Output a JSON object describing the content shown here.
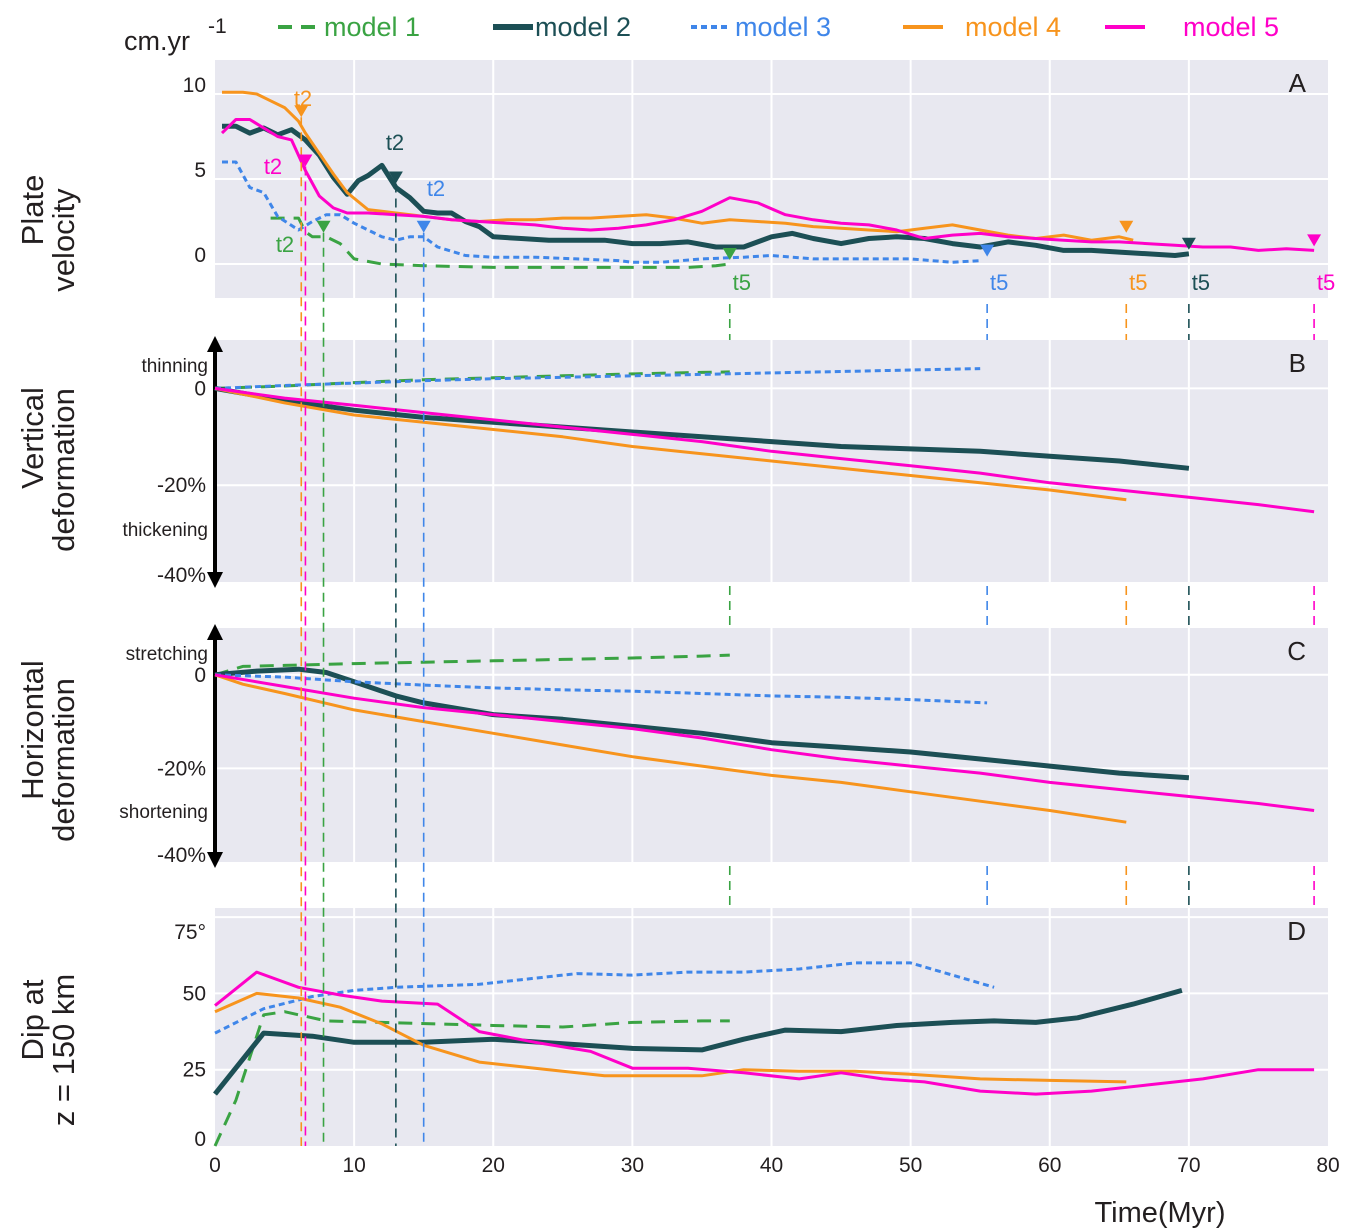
{
  "legend": {
    "unit": "cm.yr",
    "unit_sup": "-1",
    "items": [
      {
        "label": "model 1",
        "color": "#3aa343",
        "dash": "14,9",
        "width": 3
      },
      {
        "label": "model 2",
        "color": "#1c4f55",
        "dash": "",
        "width": 5
      },
      {
        "label": "model 3",
        "color": "#3f86e9",
        "dash": "6,4",
        "width": 3
      },
      {
        "label": "model 4",
        "color": "#f7941d",
        "dash": "",
        "width": 3
      },
      {
        "label": "model 5",
        "color": "#ff00c8",
        "dash": "",
        "width": 3
      }
    ]
  },
  "xaxis": {
    "label": "Time(Myr)",
    "ticks": [
      "0",
      "10",
      "20",
      "30",
      "40",
      "50",
      "60",
      "70",
      "80"
    ]
  },
  "panels": [
    {
      "letter": "A",
      "ylabel": [
        "Plate",
        "velocity"
      ],
      "ticks": [
        "10",
        "5",
        "0"
      ],
      "top_label": "",
      "bottom_label": ""
    },
    {
      "letter": "B",
      "ylabel": [
        "Vertical",
        "deformation"
      ],
      "ticks": [
        "0",
        "-20%",
        "-40%"
      ],
      "top_label": "thinning",
      "bottom_label": "thickening"
    },
    {
      "letter": "C",
      "ylabel": [
        "Horizontal",
        "deformation"
      ],
      "ticks": [
        "0",
        "-20%",
        "-40%"
      ],
      "top_label": "stretching",
      "bottom_label": "shortening"
    },
    {
      "letter": "D",
      "ylabel": [
        "Dip at",
        "z = 150 km"
      ],
      "ticks": [
        "75°",
        "50",
        "25",
        "0"
      ],
      "top_label": "",
      "bottom_label": ""
    }
  ],
  "markers": {
    "t2": [
      {
        "model": 1,
        "time": 7.8,
        "label": "t2"
      },
      {
        "model": 2,
        "time": 13.0,
        "label": "t2"
      },
      {
        "model": 3,
        "time": 15.0,
        "label": "t2"
      },
      {
        "model": 4,
        "time": 6.2,
        "label": "t2"
      },
      {
        "model": 5,
        "time": 6.5,
        "label": "t2"
      }
    ],
    "t5": [
      {
        "model": 1,
        "time": 37.0,
        "label": "t5"
      },
      {
        "model": 2,
        "time": 70.0,
        "label": "t5"
      },
      {
        "model": 3,
        "time": 55.5,
        "label": "t5"
      },
      {
        "model": 4,
        "time": 65.5,
        "label": "t5"
      },
      {
        "model": 5,
        "time": 79.0,
        "label": "t5"
      }
    ]
  },
  "chart_data": [
    {
      "type": "line",
      "panel": "A",
      "ylabel": "Plate velocity",
      "unit": "cm.yr-1",
      "xlim": [
        0,
        80
      ],
      "ylim": [
        -2,
        12
      ],
      "series": [
        {
          "name": "model 1",
          "x": [
            4,
            5,
            6,
            6.5,
            7,
            7.5,
            8,
            9,
            10,
            12,
            15,
            20,
            25,
            30,
            34,
            36,
            37
          ],
          "y": [
            2.7,
            2.7,
            2.7,
            1.9,
            1.6,
            1.6,
            1.6,
            1.2,
            0.3,
            0.0,
            -0.1,
            -0.2,
            -0.2,
            -0.2,
            -0.2,
            -0.1,
            0.0
          ]
        },
        {
          "name": "model 2",
          "x": [
            0.5,
            1.5,
            2.5,
            3.5,
            4.5,
            5.5,
            6.5,
            7.5,
            8.5,
            9.5,
            10.3,
            11,
            12,
            13,
            14,
            15,
            16,
            17,
            18,
            19,
            20,
            22,
            24,
            26,
            28,
            30,
            32,
            34,
            36,
            38,
            40,
            41.5,
            43,
            45,
            47,
            49,
            51,
            53,
            55,
            57,
            59,
            61,
            63,
            65,
            67,
            69,
            70
          ],
          "y": [
            8.1,
            8.1,
            7.7,
            8.0,
            7.6,
            7.9,
            7.3,
            6.4,
            5.1,
            4.1,
            4.9,
            5.2,
            5.8,
            4.5,
            3.9,
            3.1,
            3.0,
            3.0,
            2.5,
            2.2,
            1.6,
            1.5,
            1.4,
            1.4,
            1.4,
            1.2,
            1.2,
            1.3,
            1.0,
            1.0,
            1.6,
            1.8,
            1.5,
            1.2,
            1.5,
            1.6,
            1.5,
            1.2,
            1.0,
            1.3,
            1.1,
            0.8,
            0.8,
            0.7,
            0.6,
            0.5,
            0.6
          ]
        },
        {
          "name": "model 3",
          "x": [
            0.5,
            1.5,
            2.5,
            3.5,
            4.5,
            6,
            7,
            8,
            9,
            10,
            12,
            13,
            14,
            15,
            16,
            18,
            20,
            23,
            26,
            29,
            30,
            32,
            35,
            38,
            40,
            43,
            45,
            48,
            50,
            53,
            55
          ],
          "y": [
            6.0,
            6.0,
            4.5,
            4.2,
            2.8,
            2.0,
            2.5,
            2.9,
            2.9,
            2.4,
            1.6,
            1.4,
            1.6,
            1.6,
            1.0,
            0.5,
            0.4,
            0.4,
            0.3,
            0.2,
            0.1,
            0.1,
            0.3,
            0.4,
            0.5,
            0.3,
            0.3,
            0.3,
            0.3,
            0.1,
            0.2
          ]
        },
        {
          "name": "model 4",
          "x": [
            0.5,
            2,
            3,
            4,
            5,
            6,
            6.5,
            7.5,
            8.5,
            9.5,
            11,
            13,
            15,
            17,
            19,
            21,
            23,
            25,
            27,
            29,
            31,
            33,
            35,
            37,
            39,
            41,
            43,
            45,
            47,
            49,
            51,
            53,
            55,
            57,
            59,
            61,
            63,
            65,
            66
          ],
          "y": [
            10.1,
            10.1,
            10.0,
            9.6,
            9.2,
            8.4,
            7.7,
            6.5,
            5.3,
            4.2,
            3.2,
            3.0,
            2.8,
            2.6,
            2.5,
            2.6,
            2.6,
            2.7,
            2.7,
            2.8,
            2.9,
            2.7,
            2.4,
            2.6,
            2.5,
            2.4,
            2.2,
            2.1,
            2.0,
            1.9,
            2.1,
            2.3,
            2.0,
            1.7,
            1.5,
            1.7,
            1.4,
            1.6,
            1.4
          ]
        },
        {
          "name": "model 5",
          "x": [
            0.5,
            1.5,
            2.5,
            3.5,
            4.5,
            5.5,
            6.5,
            7.5,
            8.5,
            9.5,
            11,
            13,
            15,
            17,
            19,
            21,
            23,
            25,
            27,
            29,
            31,
            33,
            35,
            37,
            39,
            41,
            43,
            45,
            47,
            49,
            51,
            53,
            55,
            57,
            59,
            61,
            63,
            65,
            67,
            69,
            71,
            73,
            75,
            77,
            79
          ],
          "y": [
            7.7,
            8.5,
            8.5,
            8.0,
            7.5,
            7.3,
            5.5,
            4.0,
            3.3,
            3.0,
            3.0,
            2.9,
            2.8,
            2.6,
            2.5,
            2.4,
            2.3,
            2.1,
            2.0,
            2.1,
            2.3,
            2.6,
            3.1,
            3.9,
            3.6,
            2.9,
            2.6,
            2.4,
            2.3,
            2.0,
            1.5,
            1.7,
            1.8,
            1.6,
            1.5,
            1.4,
            1.3,
            1.3,
            1.2,
            1.1,
            1.0,
            1.0,
            0.8,
            0.9,
            0.8
          ]
        }
      ]
    },
    {
      "type": "line",
      "panel": "B",
      "ylabel": "Vertical deformation",
      "unit": "%",
      "xlim": [
        0,
        80
      ],
      "ylim": [
        -40,
        10
      ],
      "series": [
        {
          "name": "model 1",
          "x": [
            0,
            5,
            10,
            15,
            20,
            25,
            30,
            35,
            37
          ],
          "y": [
            0,
            0.5,
            1.2,
            1.8,
            2.2,
            2.6,
            3.0,
            3.3,
            3.4
          ]
        },
        {
          "name": "model 2",
          "x": [
            0,
            5,
            10,
            15,
            20,
            25,
            30,
            35,
            40,
            45,
            50,
            55,
            60,
            65,
            70
          ],
          "y": [
            0,
            -2.5,
            -4.5,
            -6,
            -7,
            -8,
            -9,
            -10,
            -11,
            -12,
            -12.5,
            -13,
            -14,
            -15,
            -16.5
          ]
        },
        {
          "name": "model 3",
          "x": [
            0,
            5,
            10,
            15,
            20,
            25,
            30,
            35,
            40,
            45,
            50,
            55
          ],
          "y": [
            0,
            0.6,
            1.1,
            1.6,
            2.0,
            2.3,
            2.6,
            2.9,
            3.2,
            3.5,
            3.8,
            4.1
          ]
        },
        {
          "name": "model 4",
          "x": [
            0,
            5,
            10,
            15,
            20,
            25,
            30,
            35,
            40,
            45,
            50,
            55,
            60,
            65.5
          ],
          "y": [
            0,
            -3,
            -5.5,
            -7,
            -8.5,
            -10,
            -12,
            -13.5,
            -15,
            -16.5,
            -18,
            -19.5,
            -21,
            -23
          ]
        },
        {
          "name": "model 5",
          "x": [
            0,
            5,
            10,
            15,
            20,
            25,
            30,
            35,
            40,
            45,
            50,
            55,
            60,
            65,
            70,
            75,
            79
          ],
          "y": [
            0,
            -2,
            -3.5,
            -5,
            -6.5,
            -8,
            -9.5,
            -11,
            -13,
            -14.5,
            -16,
            -17.5,
            -19.5,
            -21,
            -22.5,
            -24,
            -25.5
          ]
        }
      ]
    },
    {
      "type": "line",
      "panel": "C",
      "ylabel": "Horizontal deformation",
      "unit": "%",
      "xlim": [
        0,
        80
      ],
      "ylim": [
        -40,
        10
      ],
      "series": [
        {
          "name": "model 1",
          "x": [
            0,
            2,
            5,
            10,
            15,
            20,
            25,
            30,
            35,
            37
          ],
          "y": [
            0,
            1.8,
            2.0,
            2.4,
            2.7,
            3.0,
            3.3,
            3.6,
            4.0,
            4.2
          ]
        },
        {
          "name": "model 2",
          "x": [
            0,
            3,
            6,
            8,
            10,
            13,
            15,
            20,
            25,
            30,
            35,
            40,
            45,
            50,
            55,
            60,
            65,
            70
          ],
          "y": [
            0,
            0.8,
            1.2,
            0.5,
            -1.5,
            -4.5,
            -6,
            -8.5,
            -9.5,
            -11,
            -12.5,
            -14.5,
            -15.5,
            -16.5,
            -18,
            -19.5,
            -21,
            -22
          ]
        },
        {
          "name": "model 3",
          "x": [
            0,
            5,
            10,
            15,
            20,
            25,
            30,
            35,
            40,
            45,
            50,
            55.5
          ],
          "y": [
            0,
            -0.5,
            -1.5,
            -2.2,
            -2.8,
            -3.2,
            -3.5,
            -4.0,
            -4.5,
            -4.8,
            -5.3,
            -6.0
          ]
        },
        {
          "name": "model 4",
          "x": [
            0,
            2,
            5,
            10,
            15,
            20,
            25,
            30,
            35,
            40,
            45,
            50,
            55,
            60,
            65.5
          ],
          "y": [
            0,
            -2,
            -4,
            -7.5,
            -10,
            -12.5,
            -15,
            -17.5,
            -19.5,
            -21.5,
            -23,
            -25,
            -27,
            -29,
            -31.5
          ]
        },
        {
          "name": "model 5",
          "x": [
            0,
            5,
            10,
            15,
            20,
            25,
            30,
            35,
            40,
            45,
            50,
            55,
            60,
            65,
            70,
            75,
            79
          ],
          "y": [
            0,
            -2.5,
            -5,
            -7,
            -8.5,
            -10,
            -11.5,
            -13.5,
            -16,
            -18,
            -19.5,
            -21,
            -23,
            -24.5,
            -26,
            -27.5,
            -29
          ]
        }
      ]
    },
    {
      "type": "line",
      "panel": "D",
      "ylabel": "Dip at z = 150 km",
      "unit": "°",
      "xlim": [
        0,
        80
      ],
      "ylim": [
        0,
        78
      ],
      "series": [
        {
          "name": "model 1",
          "x": [
            0,
            1.5,
            3.5,
            5,
            8,
            12,
            16,
            20,
            25,
            30,
            35,
            37
          ],
          "y": [
            0,
            15,
            43,
            44,
            41,
            40.5,
            40,
            39.5,
            39,
            40.5,
            41,
            41
          ]
        },
        {
          "name": "model 2",
          "x": [
            0,
            3.5,
            7,
            10,
            13,
            15,
            20,
            25,
            30,
            35,
            38,
            41,
            45,
            49,
            53,
            56,
            59,
            62,
            66,
            69.5
          ],
          "y": [
            17,
            37,
            36,
            34,
            34,
            34,
            35,
            33.5,
            32,
            31.5,
            35,
            38,
            37.5,
            39.5,
            40.5,
            41,
            40.5,
            42,
            46.5,
            51
          ]
        },
        {
          "name": "model 3",
          "x": [
            0,
            3.5,
            7,
            10,
            13,
            16,
            19,
            22,
            26,
            30,
            34,
            38,
            42,
            46,
            50,
            53,
            56
          ],
          "y": [
            37,
            45,
            49,
            51,
            52,
            52.5,
            53,
            54.5,
            56.5,
            56,
            57,
            57,
            58,
            60,
            60,
            56,
            52
          ]
        },
        {
          "name": "model 4",
          "x": [
            0,
            3,
            6,
            9,
            12,
            15,
            19,
            23,
            28,
            32,
            35,
            38,
            42,
            46,
            50,
            55,
            60,
            65.5
          ],
          "y": [
            44,
            50,
            48.5,
            45.5,
            40,
            33,
            27.5,
            25.5,
            23,
            23,
            23,
            25,
            24.5,
            24.5,
            23.5,
            22,
            21.5,
            21
          ]
        },
        {
          "name": "model 5",
          "x": [
            0,
            3,
            6,
            9,
            12,
            16,
            19,
            23,
            27,
            30,
            34,
            38,
            42,
            45,
            48,
            51,
            55,
            59,
            63,
            67,
            71,
            75,
            79
          ],
          "y": [
            46,
            57,
            52,
            49.5,
            47.5,
            46.5,
            37.5,
            34,
            31,
            25.5,
            25.5,
            24,
            22,
            24,
            22,
            21,
            18,
            17,
            18,
            20,
            22,
            25,
            25
          ]
        }
      ]
    }
  ]
}
